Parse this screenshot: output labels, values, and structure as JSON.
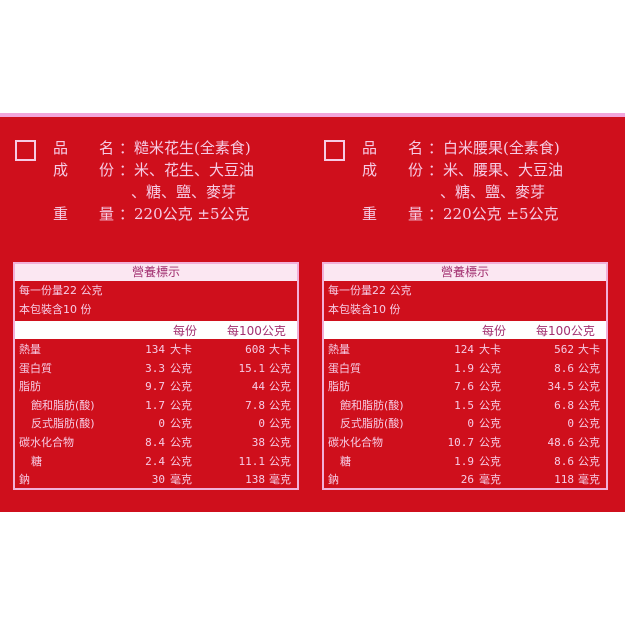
{
  "products": [
    {
      "labels": {
        "name": "品",
        "name2": "名",
        "ing": "成",
        "ing2": "份",
        "wt": "重",
        "wt2": "量"
      },
      "name": "：糙米花生(全素食)",
      "ingredients1": "：米、花生、大豆油",
      "ingredients2": "、糖、鹽、麥芽",
      "weight": "：220公克 ±5公克",
      "nutrition": {
        "title": "營養標示",
        "serving": "每一份量22 公克",
        "servings": "本包裝含10 份",
        "col1": "每份",
        "col2": "每100公克",
        "rows": [
          {
            "n": "熱量",
            "v1": "134",
            "u1": "大卡",
            "v2": "608",
            "u2": "大卡",
            "indent": false
          },
          {
            "n": "蛋白質",
            "v1": "3.3",
            "u1": "公克",
            "v2": "15.1",
            "u2": "公克",
            "indent": false
          },
          {
            "n": "脂肪",
            "v1": "9.7",
            "u1": "公克",
            "v2": "44",
            "u2": "公克",
            "indent": false
          },
          {
            "n": "飽和脂肪(酸)",
            "v1": "1.7",
            "u1": "公克",
            "v2": "7.8",
            "u2": "公克",
            "indent": true
          },
          {
            "n": "反式脂肪(酸)",
            "v1": "0",
            "u1": "公克",
            "v2": "0",
            "u2": "公克",
            "indent": true
          },
          {
            "n": "碳水化合物",
            "v1": "8.4",
            "u1": "公克",
            "v2": "38",
            "u2": "公克",
            "indent": false
          },
          {
            "n": "糖",
            "v1": "2.4",
            "u1": "公克",
            "v2": "11.1",
            "u2": "公克",
            "indent": true
          },
          {
            "n": "鈉",
            "v1": "30",
            "u1": "毫克",
            "v2": "138",
            "u2": "毫克",
            "indent": false
          }
        ]
      }
    },
    {
      "labels": {
        "name": "品",
        "name2": "名",
        "ing": "成",
        "ing2": "份",
        "wt": "重",
        "wt2": "量"
      },
      "name": "：白米腰果(全素食)",
      "ingredients1": "：米、腰果、大豆油",
      "ingredients2": "、糖、鹽、麥芽",
      "weight": "：220公克 ±5公克",
      "nutrition": {
        "title": "營養標示",
        "serving": "每一份量22 公克",
        "servings": "本包裝含10 份",
        "col1": "每份",
        "col2": "每100公克",
        "rows": [
          {
            "n": "熱量",
            "v1": "124",
            "u1": "大卡",
            "v2": "562",
            "u2": "大卡",
            "indent": false
          },
          {
            "n": "蛋白質",
            "v1": "1.9",
            "u1": "公克",
            "v2": "8.6",
            "u2": "公克",
            "indent": false
          },
          {
            "n": "脂肪",
            "v1": "7.6",
            "u1": "公克",
            "v2": "34.5",
            "u2": "公克",
            "indent": false
          },
          {
            "n": "飽和脂肪(酸)",
            "v1": "1.5",
            "u1": "公克",
            "v2": "6.8",
            "u2": "公克",
            "indent": true
          },
          {
            "n": "反式脂肪(酸)",
            "v1": "0",
            "u1": "公克",
            "v2": "0",
            "u2": "公克",
            "indent": true
          },
          {
            "n": "碳水化合物",
            "v1": "10.7",
            "u1": "公克",
            "v2": "48.6",
            "u2": "公克",
            "indent": false
          },
          {
            "n": "糖",
            "v1": "1.9",
            "u1": "公克",
            "v2": "8.6",
            "u2": "公克",
            "indent": true
          },
          {
            "n": "鈉",
            "v1": "26",
            "u1": "毫克",
            "v2": "118",
            "u2": "毫克",
            "indent": false
          }
        ]
      }
    }
  ]
}
